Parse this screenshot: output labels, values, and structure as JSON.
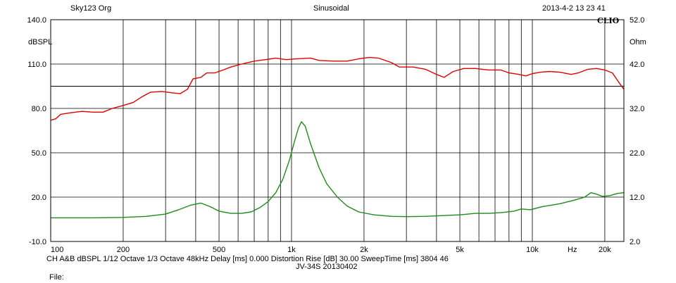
{
  "header": {
    "left": "Sky123 Org",
    "center": "Sinusoidal",
    "right": "2013-4-2 13 23 41",
    "brand": "CLIO"
  },
  "footer": {
    "line1": "CH A&B  dBSPL    1/12 Octave    1/3 Octave   48kHz   Delay [ms] 0.000   Distortion Rise [dB] 30.00    SweepTime [ms] 3804 46",
    "line2": "JV-34S  20130402",
    "line3": "File:"
  },
  "chart_data": {
    "type": "line",
    "title": "Sinusoidal",
    "xscale": "log",
    "xlim": [
      100,
      24000
    ],
    "ylim_left": [
      -10,
      140
    ],
    "ylim_right": [
      2,
      52
    ],
    "ylabel_left": "dBSPL",
    "ylabel_right": "Ohm",
    "x_unit": "Hz",
    "grid": true,
    "x_tick_labels": [
      {
        "value": 100,
        "label": "100"
      },
      {
        "value": 200,
        "label": "200"
      },
      {
        "value": 500,
        "label": "500"
      },
      {
        "value": 1000,
        "label": "1k"
      },
      {
        "value": 2000,
        "label": "2k"
      },
      {
        "value": 5000,
        "label": "5k"
      },
      {
        "value": 10000,
        "label": "10k"
      },
      {
        "value": 20000,
        "label": "20k"
      }
    ],
    "y_left_ticks": [
      {
        "value": 140,
        "label": "140.0"
      },
      {
        "value": 110,
        "label": "110.0"
      },
      {
        "value": 80,
        "label": "80.0"
      },
      {
        "value": 50,
        "label": "50.0"
      },
      {
        "value": 20,
        "label": "20.0"
      },
      {
        "value": -10,
        "label": "-10.0"
      }
    ],
    "y_right_ticks": [
      {
        "value": 52,
        "label": "52.0"
      },
      {
        "value": 42,
        "label": "42.0"
      },
      {
        "value": 32,
        "label": "32.0"
      },
      {
        "value": 22,
        "label": "22.0"
      },
      {
        "value": 12,
        "label": "12.0"
      },
      {
        "value": 2,
        "label": "2.0"
      }
    ],
    "reference_line_dbspl": 95,
    "series": [
      {
        "color": "#e00000",
        "axis": "left",
        "points": [
          [
            100,
            72
          ],
          [
            105,
            73
          ],
          [
            110,
            76
          ],
          [
            120,
            77
          ],
          [
            135,
            78
          ],
          [
            150,
            77.5
          ],
          [
            165,
            77.5
          ],
          [
            180,
            80
          ],
          [
            200,
            82
          ],
          [
            220,
            84
          ],
          [
            240,
            88
          ],
          [
            260,
            91
          ],
          [
            290,
            91.5
          ],
          [
            320,
            90.5
          ],
          [
            345,
            90
          ],
          [
            370,
            93
          ],
          [
            390,
            100
          ],
          [
            420,
            101
          ],
          [
            445,
            104
          ],
          [
            480,
            104
          ],
          [
            520,
            106
          ],
          [
            560,
            108
          ],
          [
            620,
            110
          ],
          [
            700,
            112
          ],
          [
            780,
            113
          ],
          [
            860,
            114
          ],
          [
            950,
            113
          ],
          [
            1050,
            113.5
          ],
          [
            1200,
            114
          ],
          [
            1300,
            112.5
          ],
          [
            1500,
            112
          ],
          [
            1700,
            112
          ],
          [
            1900,
            113.5
          ],
          [
            2100,
            114.5
          ],
          [
            2300,
            114
          ],
          [
            2600,
            111
          ],
          [
            2800,
            108
          ],
          [
            3200,
            108
          ],
          [
            3600,
            106.5
          ],
          [
            4000,
            103
          ],
          [
            4300,
            101
          ],
          [
            4700,
            105
          ],
          [
            5200,
            107
          ],
          [
            5800,
            107
          ],
          [
            6600,
            106
          ],
          [
            7400,
            106
          ],
          [
            8000,
            104
          ],
          [
            8800,
            103
          ],
          [
            9400,
            102
          ],
          [
            10000,
            103.5
          ],
          [
            10800,
            104.5
          ],
          [
            11800,
            105
          ],
          [
            13000,
            104.5
          ],
          [
            14500,
            103
          ],
          [
            15500,
            104
          ],
          [
            17000,
            106.5
          ],
          [
            18500,
            107
          ],
          [
            20000,
            106
          ],
          [
            21500,
            104
          ],
          [
            23000,
            97
          ],
          [
            24000,
            93
          ]
        ]
      },
      {
        "color": "#1a8c1a",
        "axis": "left",
        "points": [
          [
            100,
            6
          ],
          [
            150,
            6
          ],
          [
            200,
            6.3
          ],
          [
            250,
            7
          ],
          [
            300,
            8.5
          ],
          [
            340,
            11.5
          ],
          [
            380,
            14.5
          ],
          [
            420,
            16
          ],
          [
            460,
            13.5
          ],
          [
            500,
            10.5
          ],
          [
            560,
            9
          ],
          [
            620,
            9
          ],
          [
            680,
            10
          ],
          [
            740,
            13
          ],
          [
            800,
            17
          ],
          [
            860,
            23
          ],
          [
            920,
            32
          ],
          [
            980,
            45
          ],
          [
            1030,
            58
          ],
          [
            1070,
            67
          ],
          [
            1100,
            71
          ],
          [
            1140,
            68
          ],
          [
            1200,
            56
          ],
          [
            1300,
            40
          ],
          [
            1400,
            29
          ],
          [
            1550,
            20
          ],
          [
            1700,
            14
          ],
          [
            1900,
            10
          ],
          [
            2200,
            8
          ],
          [
            2600,
            7
          ],
          [
            3000,
            6.8
          ],
          [
            3600,
            7
          ],
          [
            4200,
            7.5
          ],
          [
            5000,
            8
          ],
          [
            5800,
            9
          ],
          [
            6600,
            9
          ],
          [
            7400,
            9.5
          ],
          [
            8400,
            10.5
          ],
          [
            9000,
            12
          ],
          [
            9800,
            11.5
          ],
          [
            11000,
            13.5
          ],
          [
            13000,
            15.5
          ],
          [
            15000,
            18
          ],
          [
            16500,
            20
          ],
          [
            17500,
            23
          ],
          [
            18500,
            22
          ],
          [
            19500,
            20.5
          ],
          [
            21000,
            21
          ],
          [
            22500,
            22.5
          ],
          [
            24000,
            23
          ]
        ]
      }
    ]
  }
}
